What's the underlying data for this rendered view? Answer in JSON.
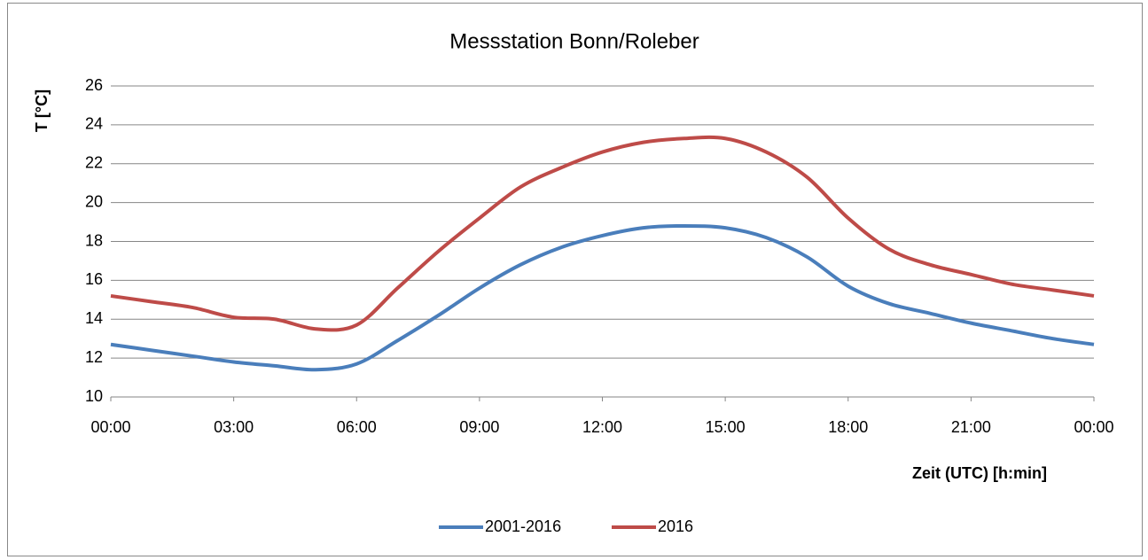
{
  "chart_data": {
    "type": "line",
    "title": "Messstation Bonn/Roleber",
    "y_label": "T [°C]",
    "x_label": "Zeit (UTC) [h:min]",
    "x": [
      0,
      1,
      2,
      3,
      4,
      5,
      6,
      7,
      8,
      9,
      10,
      11,
      12,
      13,
      14,
      15,
      16,
      17,
      18,
      19,
      20,
      21,
      22,
      23,
      24
    ],
    "series": [
      {
        "name": "2001-2016",
        "color": "#4a7ebb",
        "values": [
          12.7,
          12.4,
          12.1,
          11.8,
          11.6,
          11.4,
          11.7,
          12.9,
          14.2,
          15.6,
          16.8,
          17.7,
          18.3,
          18.7,
          18.8,
          18.7,
          18.2,
          17.2,
          15.7,
          14.8,
          14.3,
          13.8,
          13.4,
          13.0,
          12.7
        ]
      },
      {
        "name": "2016",
        "color": "#be4b48",
        "values": [
          15.2,
          14.9,
          14.6,
          14.1,
          14.0,
          13.5,
          13.7,
          15.6,
          17.5,
          19.2,
          20.8,
          21.8,
          22.6,
          23.1,
          23.3,
          23.3,
          22.6,
          21.3,
          19.2,
          17.6,
          16.8,
          16.3,
          15.8,
          15.5,
          15.2
        ]
      }
    ],
    "xlim": [
      0,
      24
    ],
    "xticks": [
      {
        "value": 0,
        "label": "00:00"
      },
      {
        "value": 3,
        "label": "03:00"
      },
      {
        "value": 6,
        "label": "06:00"
      },
      {
        "value": 9,
        "label": "09:00"
      },
      {
        "value": 12,
        "label": "12:00"
      },
      {
        "value": 15,
        "label": "15:00"
      },
      {
        "value": 18,
        "label": "18:00"
      },
      {
        "value": 21,
        "label": "21:00"
      },
      {
        "value": 24,
        "label": "00:00"
      }
    ],
    "ylim": [
      10,
      26
    ],
    "yticks": [
      10,
      12,
      14,
      16,
      18,
      20,
      22,
      24,
      26
    ],
    "grid": true,
    "legend": "bottom"
  }
}
